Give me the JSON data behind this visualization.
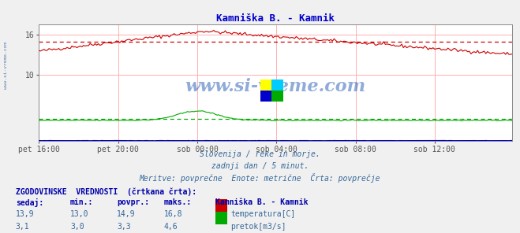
{
  "title": "Kamniška B. - Kamnik",
  "title_color": "#0000cc",
  "bg_color": "#f0f0f0",
  "plot_bg_color": "#ffffff",
  "grid_color": "#ffb0b0",
  "border_color": "#aaaaaa",
  "x_tick_labels": [
    "pet 16:00",
    "pet 20:00",
    "sob 00:00",
    "sob 04:00",
    "sob 08:00",
    "sob 12:00"
  ],
  "x_tick_positions": [
    0,
    48,
    96,
    144,
    192,
    240
  ],
  "n_points": 288,
  "temp_avg": 14.9,
  "pretok_avg": 3.3,
  "y_lim_min": 0,
  "y_lim_max": 17.5,
  "y_ticks": [
    10,
    16
  ],
  "temp_line_color": "#cc0000",
  "pretok_line_color": "#00aa00",
  "visina_line_color": "#0000cc",
  "watermark": "www.si-vreme.com",
  "subtitle1": "Slovenija / reke in morje.",
  "subtitle2": "zadnji dan / 5 minut.",
  "subtitle3": "Meritve: povprečne  Enote: metrične  Črta: povprečje",
  "legend_title": "ZGODOVINSKE  VREDNOSTI  (črtkana črta):",
  "col_sedaj": "sedaj:",
  "col_min": "min.:",
  "col_povpr": "povpr.:",
  "col_maks": "maks.:",
  "col_station": "Kamniška B. - Kamnik",
  "row1_sedaj": "13,9",
  "row1_min": "13,0",
  "row1_povpr": "14,9",
  "row1_maks": "16,8",
  "row1_label": "temperatura[C]",
  "row2_sedaj": "3,1",
  "row2_min": "3,0",
  "row2_povpr": "3,3",
  "row2_maks": "4,6",
  "row2_label": "pretok[m3/s]",
  "sidebar_text": "www.si-vreme.com"
}
